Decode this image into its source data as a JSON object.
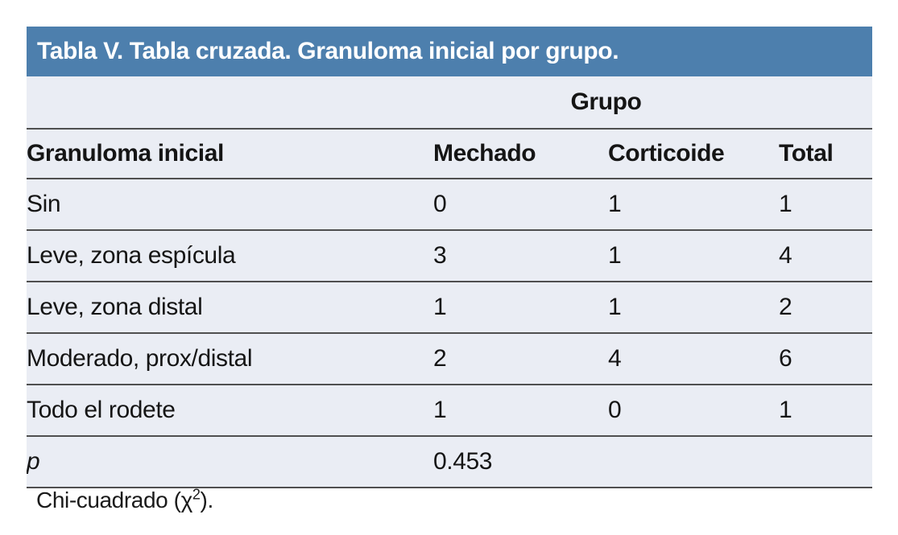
{
  "table": {
    "title": "Tabla V. Tabla cruzada. Granuloma inicial por grupo.",
    "group_header": "Grupo",
    "columns": {
      "label": "Granuloma inicial",
      "mechado": "Mechado",
      "corticoide": "Corticoide",
      "total": "Total"
    },
    "rows": [
      {
        "label": "Sin",
        "mechado": "0",
        "corticoide": "1",
        "total": "1"
      },
      {
        "label": "Leve, zona espícula",
        "mechado": "3",
        "corticoide": "1",
        "total": "4"
      },
      {
        "label": "Leve, zona distal",
        "mechado": "1",
        "corticoide": "1",
        "total": "2"
      },
      {
        "label": "Moderado, prox/distal",
        "mechado": "2",
        "corticoide": "4",
        "total": "6"
      },
      {
        "label": "Todo el rodete",
        "mechado": "1",
        "corticoide": "0",
        "total": "1"
      }
    ],
    "p_row": {
      "label": "p",
      "value": "0.453"
    },
    "footnote": {
      "pre": "Chi-cuadrado (χ",
      "sup": "2",
      "post": ")."
    },
    "colors": {
      "title_bar_bg": "#4d7fad",
      "title_text": "#ffffff",
      "body_bg": "#eaedf4",
      "divider": "#4f4f4f",
      "text": "#151515"
    }
  }
}
